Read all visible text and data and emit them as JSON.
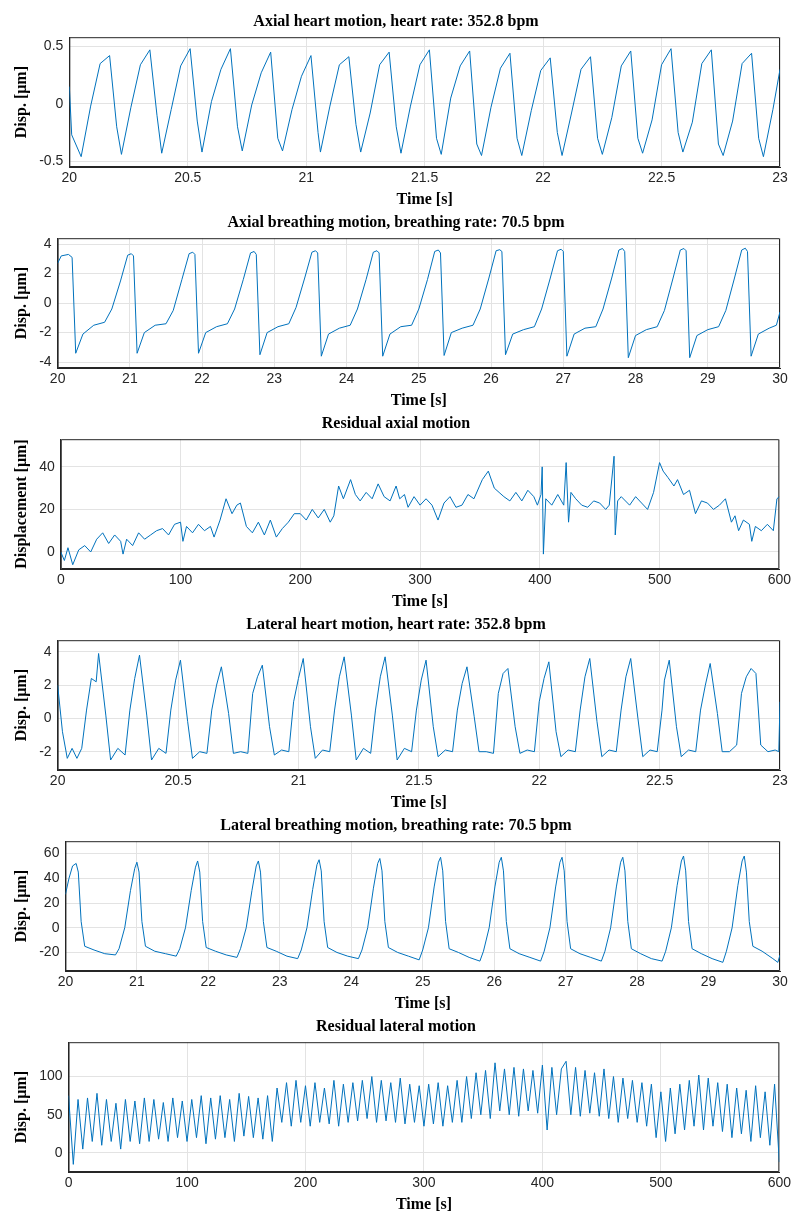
{
  "chart_data": [
    {
      "type": "line",
      "title": "Axial heart motion, heart rate: 352.8 bpm",
      "xlabel": "Time [s]",
      "ylabel": "Disp. [μm]",
      "color": "#0072bd",
      "marker": "none",
      "grid": true,
      "xlim": [
        20,
        23
      ],
      "ylim": [
        -0.55,
        0.58
      ],
      "xticks": [
        20,
        20.5,
        21,
        21.5,
        22,
        22.5,
        23
      ],
      "yticks": [
        -0.5,
        0,
        0.5
      ],
      "x": [
        20.0,
        20.01,
        20.05,
        20.09,
        20.13,
        20.17,
        20.2,
        20.22,
        20.26,
        20.3,
        20.34,
        20.37,
        20.39,
        20.43,
        20.47,
        20.51,
        20.54,
        20.56,
        20.6,
        20.64,
        20.68,
        20.71,
        20.73,
        20.77,
        20.81,
        20.85,
        20.88,
        20.9,
        20.94,
        20.98,
        21.02,
        21.05,
        21.06,
        21.1,
        21.14,
        21.18,
        21.21,
        21.23,
        21.27,
        21.31,
        21.35,
        21.38,
        21.4,
        21.44,
        21.48,
        21.52,
        21.55,
        21.57,
        21.61,
        21.65,
        21.69,
        21.72,
        21.74,
        21.78,
        21.82,
        21.86,
        21.89,
        21.91,
        21.95,
        21.99,
        22.03,
        22.06,
        22.08,
        22.12,
        22.16,
        22.2,
        22.23,
        22.25,
        22.29,
        22.33,
        22.37,
        22.4,
        22.42,
        22.46,
        22.5,
        22.54,
        22.57,
        22.59,
        22.63,
        22.67,
        22.71,
        22.74,
        22.76,
        22.8,
        22.84,
        22.88,
        22.91,
        22.93,
        22.97,
        23.0
      ],
      "values": [
        0.15,
        -0.27,
        -0.46,
        -0.02,
        0.35,
        0.42,
        -0.2,
        -0.44,
        -0.03,
        0.34,
        0.47,
        -0.1,
        -0.43,
        -0.05,
        0.33,
        0.48,
        -0.15,
        -0.42,
        0.02,
        0.3,
        0.48,
        -0.2,
        -0.41,
        -0.01,
        0.27,
        0.45,
        -0.3,
        -0.41,
        -0.05,
        0.24,
        0.42,
        -0.25,
        -0.42,
        -0.02,
        0.34,
        0.41,
        -0.18,
        -0.42,
        -0.08,
        0.34,
        0.45,
        -0.2,
        -0.43,
        -0.02,
        0.34,
        0.47,
        -0.3,
        -0.44,
        0.05,
        0.33,
        0.46,
        -0.35,
        -0.45,
        -0.03,
        0.31,
        0.44,
        -0.3,
        -0.45,
        -0.06,
        0.29,
        0.4,
        -0.25,
        -0.45,
        -0.08,
        0.3,
        0.41,
        -0.3,
        -0.44,
        -0.12,
        0.33,
        0.46,
        -0.3,
        -0.43,
        -0.14,
        0.34,
        0.48,
        -0.25,
        -0.42,
        -0.16,
        0.35,
        0.47,
        -0.35,
        -0.45,
        -0.15,
        0.35,
        0.44,
        -0.3,
        -0.46,
        -0.05,
        0.3
      ]
    },
    {
      "type": "line",
      "title": "Axial breathing motion, breathing rate: 70.5 bpm",
      "xlabel": "Time [s]",
      "ylabel": "Disp. [μm]",
      "color": "#0072bd",
      "marker": "none",
      "grid": true,
      "xlim": [
        20,
        30
      ],
      "ylim": [
        -4.4,
        4.4
      ],
      "xticks": [
        20,
        21,
        22,
        23,
        24,
        25,
        26,
        27,
        28,
        29,
        30
      ],
      "yticks": [
        -4,
        -2,
        0,
        2,
        4
      ],
      "x": [
        20.0,
        20.05,
        20.15,
        20.2,
        20.25,
        20.35,
        20.5,
        20.65,
        20.75,
        20.87,
        20.97,
        21.02,
        21.05,
        21.1,
        21.2,
        21.35,
        21.5,
        21.6,
        21.72,
        21.82,
        21.87,
        21.9,
        21.95,
        22.05,
        22.2,
        22.35,
        22.45,
        22.57,
        22.67,
        22.72,
        22.75,
        22.8,
        22.9,
        23.05,
        23.2,
        23.3,
        23.42,
        23.52,
        23.57,
        23.6,
        23.65,
        23.75,
        23.9,
        24.05,
        24.15,
        24.27,
        24.37,
        24.42,
        24.45,
        24.5,
        24.6,
        24.75,
        24.9,
        25.0,
        25.12,
        25.22,
        25.27,
        25.3,
        25.35,
        25.45,
        25.6,
        25.75,
        25.85,
        25.97,
        26.07,
        26.12,
        26.15,
        26.2,
        26.3,
        26.45,
        26.6,
        26.7,
        26.82,
        26.92,
        26.97,
        27.0,
        27.05,
        27.15,
        27.3,
        27.45,
        27.55,
        27.67,
        27.77,
        27.82,
        27.85,
        27.9,
        28.0,
        28.15,
        28.3,
        28.4,
        28.52,
        28.62,
        28.67,
        28.7,
        28.75,
        28.85,
        29.0,
        29.15,
        29.25,
        29.37,
        29.47,
        29.52,
        29.55,
        29.6,
        29.7,
        29.85,
        29.95,
        30.0
      ],
      "values": [
        2.7,
        3.2,
        3.3,
        3.1,
        -3.4,
        -2.1,
        -1.5,
        -1.3,
        -0.4,
        1.5,
        3.25,
        3.35,
        3.2,
        -3.4,
        -2.0,
        -1.5,
        -1.4,
        -0.5,
        1.6,
        3.35,
        3.45,
        3.3,
        -3.4,
        -2.0,
        -1.6,
        -1.4,
        -0.4,
        1.6,
        3.4,
        3.5,
        3.3,
        -3.5,
        -2.0,
        -1.6,
        -1.4,
        -0.3,
        1.7,
        3.45,
        3.55,
        3.4,
        -3.6,
        -2.1,
        -1.7,
        -1.5,
        -0.4,
        1.6,
        3.45,
        3.55,
        3.4,
        -3.6,
        -2.1,
        -1.6,
        -1.5,
        -0.4,
        1.6,
        3.5,
        3.6,
        3.4,
        -3.55,
        -2.0,
        -1.7,
        -1.5,
        -0.4,
        1.7,
        3.55,
        3.62,
        3.5,
        -3.5,
        -2.1,
        -1.8,
        -1.6,
        -0.4,
        1.7,
        3.55,
        3.65,
        3.5,
        -3.6,
        -2.1,
        -1.7,
        -1.6,
        -0.4,
        1.7,
        3.6,
        3.7,
        3.5,
        -3.7,
        -2.2,
        -1.8,
        -1.6,
        -0.5,
        1.7,
        3.6,
        3.7,
        3.55,
        -3.7,
        -2.2,
        -1.8,
        -1.6,
        -0.5,
        1.7,
        3.6,
        3.72,
        3.5,
        -3.6,
        -2.1,
        -1.7,
        -1.5,
        -0.6
      ]
    },
    {
      "type": "line",
      "title": "Residual axial motion",
      "xlabel": "Time [s]",
      "ylabel": "Displacement [μm]",
      "color": "#0072bd",
      "marker": "none",
      "grid": true,
      "xlim": [
        0,
        600
      ],
      "ylim": [
        -8,
        53
      ],
      "xticks": [
        0,
        100,
        200,
        300,
        400,
        500,
        600
      ],
      "yticks": [
        0,
        20,
        40
      ],
      "x": [
        0,
        3,
        6,
        10,
        15,
        20,
        25,
        30,
        35,
        40,
        45,
        50,
        52,
        55,
        60,
        65,
        70,
        75,
        80,
        85,
        90,
        95,
        100,
        102,
        105,
        110,
        115,
        120,
        125,
        128,
        133,
        138,
        143,
        147,
        150,
        155,
        160,
        165,
        170,
        175,
        180,
        185,
        190,
        195,
        200,
        205,
        210,
        215,
        220,
        225,
        228,
        232,
        236,
        242,
        246,
        250,
        255,
        260,
        265,
        270,
        275,
        280,
        283,
        287,
        290,
        295,
        300,
        305,
        310,
        315,
        320,
        325,
        330,
        335,
        340,
        345,
        352,
        357,
        362,
        366,
        370,
        375,
        380,
        385,
        390,
        395,
        398,
        401,
        402,
        403,
        405,
        410,
        415,
        420,
        422,
        424,
        426,
        430,
        435,
        440,
        445,
        450,
        455,
        458,
        462,
        463,
        465,
        468,
        475,
        480,
        485,
        490,
        495,
        500,
        503,
        507,
        512,
        515,
        520,
        525,
        530,
        535,
        540,
        545,
        550,
        555,
        560,
        563,
        566,
        570,
        575,
        577,
        580,
        585,
        590,
        595,
        598,
        600
      ],
      "values": [
        0,
        -4,
        2,
        -6,
        1,
        3,
        0,
        6,
        9,
        4,
        8,
        5,
        -1,
        6,
        3,
        9,
        6,
        8,
        10,
        11,
        8,
        13,
        14,
        5,
        12,
        9,
        13,
        10,
        12,
        7,
        15,
        25,
        18,
        22,
        23,
        12,
        9,
        14,
        8,
        15,
        7,
        11,
        14,
        18,
        18,
        15,
        20,
        16,
        20,
        14,
        17,
        31,
        25,
        34,
        27,
        24,
        28,
        25,
        32,
        26,
        24,
        31,
        25,
        27,
        21,
        26,
        22,
        25,
        22,
        15,
        23,
        26,
        21,
        22,
        27,
        25,
        34,
        38,
        30,
        28,
        26,
        24,
        28,
        24,
        29,
        26,
        22,
        27,
        40,
        -1,
        25,
        22,
        27,
        22,
        42,
        14,
        28,
        25,
        22,
        21,
        24,
        23,
        20,
        22,
        45,
        8,
        24,
        26,
        22,
        26,
        23,
        20,
        28,
        42,
        38,
        35,
        31,
        34,
        27,
        29,
        18,
        24,
        23,
        20,
        22,
        25,
        14,
        17,
        10,
        15,
        13,
        5,
        12,
        10,
        13,
        10,
        25,
        26
      ]
    },
    {
      "type": "line",
      "title": "Lateral heart motion, heart rate: 352.8 bpm",
      "xlabel": "Time [s]",
      "ylabel": "Disp. [μm]",
      "color": "#0072bd",
      "marker": "none",
      "grid": true,
      "xlim": [
        20,
        23
      ],
      "ylim": [
        -3.1,
        4.7
      ],
      "xticks": [
        20,
        20.5,
        21,
        21.5,
        22,
        22.5,
        23
      ],
      "yticks": [
        -2,
        0,
        2,
        4
      ],
      "x": [
        20.0,
        20.02,
        20.04,
        20.06,
        20.08,
        20.1,
        20.12,
        20.14,
        20.16,
        20.17,
        20.2,
        20.22,
        20.25,
        20.28,
        20.3,
        20.32,
        20.34,
        20.37,
        20.39,
        20.42,
        20.45,
        20.47,
        20.49,
        20.51,
        20.54,
        20.56,
        20.59,
        20.62,
        20.64,
        20.66,
        20.68,
        20.71,
        20.73,
        20.76,
        20.79,
        20.81,
        20.83,
        20.85,
        20.88,
        20.9,
        20.93,
        20.96,
        20.98,
        21.0,
        21.02,
        21.05,
        21.07,
        21.1,
        21.13,
        21.15,
        21.17,
        21.19,
        21.22,
        21.24,
        21.27,
        21.3,
        21.32,
        21.34,
        21.36,
        21.39,
        21.41,
        21.44,
        21.47,
        21.49,
        21.51,
        21.53,
        21.56,
        21.58,
        21.61,
        21.64,
        21.66,
        21.68,
        21.7,
        21.73,
        21.75,
        21.78,
        21.81,
        21.83,
        21.85,
        21.87,
        21.9,
        21.92,
        21.95,
        21.98,
        22.0,
        22.02,
        22.04,
        22.07,
        22.09,
        22.12,
        22.15,
        22.17,
        22.19,
        22.21,
        22.24,
        22.26,
        22.29,
        22.32,
        22.34,
        22.36,
        22.38,
        22.41,
        22.43,
        22.46,
        22.49,
        22.51,
        22.52,
        22.54,
        22.57,
        22.59,
        22.62,
        22.65,
        22.67,
        22.69,
        22.71,
        22.74,
        22.76,
        22.79,
        22.82,
        22.84,
        22.86,
        22.88,
        22.9,
        22.92,
        22.95,
        22.98,
        22.995,
        23.0
      ],
      "values": [
        2.0,
        -0.8,
        -2.4,
        -1.8,
        -2.4,
        -1.8,
        0.5,
        2.4,
        2.2,
        3.9,
        0.2,
        -2.5,
        -1.8,
        -2.2,
        0.5,
        2.4,
        3.8,
        0.2,
        -2.5,
        -1.8,
        -2.1,
        0.5,
        2.3,
        3.5,
        -0.2,
        -2.4,
        -2.0,
        -2.1,
        0.5,
        2.0,
        3.1,
        0.3,
        -2.1,
        -2.0,
        -2.1,
        1.5,
        2.5,
        3.2,
        -0.5,
        -2.2,
        -1.9,
        -2.0,
        1.0,
        2.4,
        3.6,
        -0.5,
        -2.4,
        -1.9,
        -2.0,
        0.5,
        2.5,
        3.7,
        0.2,
        -2.5,
        -1.8,
        -2.1,
        0.5,
        2.5,
        3.7,
        0.2,
        -2.5,
        -1.8,
        -2.0,
        0.5,
        2.3,
        3.5,
        -0.5,
        -2.3,
        -1.9,
        -2.0,
        0.5,
        2.1,
        3.1,
        0.1,
        -2.0,
        -2.0,
        -2.1,
        1.5,
        2.7,
        3.0,
        -0.5,
        -2.1,
        -1.9,
        -2.0,
        1.0,
        2.4,
        3.4,
        -0.8,
        -2.3,
        -1.9,
        -2.0,
        0.5,
        2.5,
        3.6,
        -0.2,
        -2.3,
        -1.9,
        -2.0,
        0.5,
        2.5,
        3.6,
        0.0,
        -2.3,
        -1.9,
        -2.0,
        0.5,
        2.3,
        3.5,
        -0.5,
        -2.3,
        -1.9,
        -2.0,
        0.5,
        2.0,
        3.3,
        0.3,
        -2.0,
        -2.0,
        -1.6,
        1.5,
        2.5,
        3.0,
        2.7,
        -1.6,
        -2.0,
        -1.9,
        -2.0,
        1.0
      ]
    },
    {
      "type": "line",
      "title": "Lateral breathing motion, breathing rate: 70.5 bpm",
      "xlabel": "Time [s]",
      "ylabel": "Disp. [μm]",
      "color": "#0072bd",
      "marker": "none",
      "grid": true,
      "xlim": [
        20,
        30
      ],
      "ylim": [
        -35,
        70
      ],
      "xticks": [
        20,
        21,
        22,
        23,
        24,
        25,
        26,
        27,
        28,
        29,
        30
      ],
      "yticks": [
        -20,
        0,
        20,
        40,
        60
      ],
      "x": [
        20.0,
        20.05,
        20.1,
        20.15,
        20.18,
        20.22,
        20.27,
        20.4,
        20.55,
        20.7,
        20.75,
        20.83,
        20.91,
        20.97,
        21.0,
        21.03,
        21.07,
        21.12,
        21.25,
        21.4,
        21.55,
        21.6,
        21.68,
        21.76,
        21.82,
        21.85,
        21.88,
        21.92,
        21.97,
        22.1,
        22.25,
        22.4,
        22.45,
        22.53,
        22.61,
        22.67,
        22.7,
        22.73,
        22.77,
        22.82,
        22.95,
        23.1,
        23.25,
        23.3,
        23.38,
        23.46,
        23.52,
        23.55,
        23.58,
        23.62,
        23.67,
        23.8,
        23.95,
        24.1,
        24.15,
        24.23,
        24.31,
        24.37,
        24.4,
        24.43,
        24.47,
        24.52,
        24.65,
        24.8,
        24.95,
        25.0,
        25.08,
        25.16,
        25.22,
        25.25,
        25.28,
        25.32,
        25.37,
        25.5,
        25.65,
        25.8,
        25.85,
        25.93,
        26.01,
        26.07,
        26.1,
        26.13,
        26.17,
        26.22,
        26.35,
        26.5,
        26.65,
        26.7,
        26.78,
        26.86,
        26.92,
        26.95,
        26.98,
        27.02,
        27.07,
        27.2,
        27.35,
        27.5,
        27.55,
        27.63,
        27.71,
        27.77,
        27.8,
        27.83,
        27.87,
        27.92,
        28.05,
        28.2,
        28.35,
        28.4,
        28.48,
        28.56,
        28.62,
        28.65,
        28.68,
        28.72,
        28.77,
        28.9,
        29.05,
        29.2,
        29.25,
        29.33,
        29.41,
        29.47,
        29.5,
        29.53,
        29.57,
        29.62,
        29.75,
        29.9,
        29.97,
        30.0
      ],
      "values": [
        27,
        40,
        50,
        52,
        45,
        5,
        -15,
        -18,
        -21,
        -22,
        -17,
        0,
        30,
        48,
        53,
        45,
        5,
        -15,
        -19,
        -21,
        -23,
        -17,
        0,
        30,
        49,
        54,
        45,
        5,
        -16,
        -19,
        -22,
        -24,
        -17,
        0,
        30,
        50,
        54,
        45,
        5,
        -16,
        -19,
        -23,
        -25,
        -18,
        0,
        31,
        51,
        55,
        46,
        5,
        -16,
        -20,
        -23,
        -25,
        -18,
        0,
        32,
        52,
        56,
        46,
        5,
        -16,
        -20,
        -23,
        -26,
        -18,
        0,
        33,
        53,
        57,
        46,
        5,
        -17,
        -20,
        -24,
        -27,
        -19,
        0,
        33,
        53,
        57,
        46,
        5,
        -17,
        -21,
        -24,
        -27,
        -19,
        0,
        33,
        53,
        57,
        46,
        5,
        -17,
        -21,
        -24,
        -27,
        -19,
        0,
        33,
        53,
        57,
        46,
        5,
        -17,
        -21,
        -25,
        -27,
        -19,
        0,
        34,
        54,
        58,
        46,
        5,
        -17,
        -21,
        -25,
        -28,
        -19,
        0,
        34,
        54,
        58,
        45,
        5,
        -15,
        -19,
        -25,
        -28,
        -22
      ]
    },
    {
      "type": "line",
      "title": "Residual lateral motion",
      "xlabel": "Time [s]",
      "ylabel": "Disp. [μm]",
      "color": "#0072bd",
      "marker": "none",
      "grid": true,
      "xlim": [
        0,
        600
      ],
      "ylim": [
        -25,
        145
      ],
      "xticks": [
        0,
        100,
        200,
        300,
        400,
        500,
        600
      ],
      "yticks": [
        0,
        50,
        100
      ],
      "x": [
        0,
        4,
        8,
        12,
        16,
        20,
        24,
        28,
        32,
        36,
        40,
        44,
        48,
        52,
        56,
        60,
        64,
        68,
        72,
        76,
        80,
        84,
        88,
        92,
        96,
        100,
        104,
        108,
        112,
        116,
        120,
        124,
        128,
        132,
        136,
        140,
        144,
        148,
        152,
        156,
        160,
        164,
        168,
        172,
        176,
        180,
        184,
        188,
        192,
        196,
        200,
        204,
        208,
        212,
        216,
        220,
        224,
        228,
        232,
        236,
        240,
        244,
        248,
        252,
        256,
        260,
        264,
        268,
        272,
        276,
        280,
        284,
        288,
        292,
        296,
        300,
        304,
        308,
        312,
        316,
        320,
        324,
        328,
        332,
        336,
        340,
        344,
        348,
        352,
        356,
        360,
        364,
        368,
        372,
        376,
        380,
        384,
        388,
        392,
        396,
        400,
        404,
        408,
        412,
        416,
        420,
        424,
        428,
        432,
        436,
        440,
        444,
        448,
        452,
        456,
        460,
        464,
        468,
        472,
        476,
        480,
        484,
        488,
        492,
        496,
        500,
        504,
        508,
        512,
        516,
        520,
        524,
        528,
        532,
        536,
        540,
        544,
        548,
        552,
        556,
        560,
        564,
        568,
        572,
        576,
        580,
        584,
        588,
        592,
        596,
        600
      ],
      "values": [
        75,
        -15,
        70,
        5,
        72,
        15,
        78,
        10,
        70,
        15,
        65,
        5,
        70,
        15,
        68,
        12,
        72,
        15,
        70,
        18,
        66,
        15,
        72,
        20,
        68,
        15,
        70,
        20,
        75,
        12,
        72,
        18,
        75,
        20,
        70,
        15,
        78,
        22,
        74,
        20,
        72,
        18,
        75,
        15,
        85,
        40,
        92,
        35,
        95,
        40,
        88,
        35,
        92,
        40,
        85,
        38,
        95,
        35,
        90,
        40,
        92,
        42,
        95,
        45,
        100,
        40,
        95,
        42,
        92,
        40,
        98,
        38,
        90,
        40,
        88,
        35,
        90,
        38,
        92,
        35,
        88,
        40,
        95,
        40,
        100,
        45,
        105,
        50,
        108,
        45,
        118,
        55,
        110,
        50,
        112,
        48,
        110,
        55,
        108,
        52,
        115,
        30,
        112,
        50,
        110,
        120,
        50,
        112,
        48,
        108,
        52,
        105,
        48,
        110,
        45,
        100,
        40,
        98,
        45,
        95,
        40,
        92,
        35,
        90,
        20,
        80,
        15,
        85,
        25,
        90,
        30,
        95,
        35,
        102,
        30,
        98,
        35,
        92,
        28,
        90,
        20,
        85,
        25,
        82,
        15,
        88,
        20,
        80,
        10,
        90,
        -12
      ]
    }
  ]
}
